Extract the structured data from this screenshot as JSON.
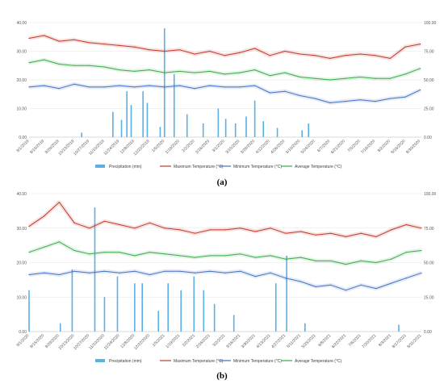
{
  "legend": [
    {
      "key": "precip",
      "name": "Precipitation (mm)",
      "color": "#5ab0e6",
      "kind": "bar"
    },
    {
      "key": "tmax",
      "name": "Maximum Temperature (°C)",
      "color": "#c0392b",
      "kind": "line"
    },
    {
      "key": "tmin",
      "name": "Minimum Temperature (°C)",
      "color": "#4472c4",
      "kind": "line"
    },
    {
      "key": "tavg",
      "name": "Average Temperature (°C)",
      "color": "#3aaa4a",
      "kind": "line"
    }
  ],
  "chart_data": [
    {
      "panel": "a",
      "label": "(a)",
      "type": "line",
      "ylim_left": [
        0,
        40
      ],
      "ylim_right": [
        0,
        100
      ],
      "yticks_left": [
        "0.00",
        "10.00",
        "20.00",
        "30.00",
        "40.00"
      ],
      "yticks_right": [
        "0.00",
        "25.00",
        "50.00",
        "75.00",
        "100.00"
      ],
      "date_start": "9/1/2019",
      "date_end": "8/31/2020",
      "x_ticks": [
        "9/1/2019",
        "9/15/2019",
        "9/29/2019",
        "10/13/2019",
        "10/27/2019",
        "11/10/2019",
        "11/24/2019",
        "12/8/2019",
        "12/22/2019",
        "1/5/2020",
        "1/19/2020",
        "2/2/2020",
        "2/16/2020",
        "3/1/2020",
        "3/15/2020",
        "3/29/2020",
        "4/12/2020",
        "4/26/2020",
        "5/10/2020",
        "5/24/2020",
        "6/7/2020",
        "6/21/2020",
        "7/5/2020",
        "7/19/2020",
        "8/2/2020",
        "8/16/2020",
        "8/30/2020"
      ],
      "series": [
        {
          "key": "tmax",
          "name": "Maximum Temperature (°C)",
          "axis": "left",
          "x": [
            "9/1/2019",
            "9/15/2019",
            "9/29/2019",
            "10/13/2019",
            "10/27/2019",
            "11/10/2019",
            "11/24/2019",
            "12/8/2019",
            "12/22/2019",
            "1/5/2020",
            "1/19/2020",
            "2/2/2020",
            "2/16/2020",
            "3/1/2020",
            "3/15/2020",
            "3/29/2020",
            "4/12/2020",
            "4/26/2020",
            "5/10/2020",
            "5/24/2020",
            "6/7/2020",
            "6/21/2020",
            "7/5/2020",
            "7/19/2020",
            "8/2/2020",
            "8/16/2020",
            "8/30/2020"
          ],
          "values": [
            34.5,
            35.5,
            33.5,
            34.0,
            33.0,
            32.5,
            32.0,
            31.5,
            30.5,
            30.0,
            30.5,
            29.0,
            30.0,
            28.5,
            29.5,
            31.0,
            28.5,
            30.0,
            29.0,
            28.5,
            27.5,
            28.5,
            29.0,
            28.5,
            27.5,
            31.5,
            32.5
          ]
        },
        {
          "key": "tavg",
          "name": "Average Temperature (°C)",
          "axis": "left",
          "x": [
            "9/1/2019",
            "9/15/2019",
            "9/29/2019",
            "10/13/2019",
            "10/27/2019",
            "11/10/2019",
            "11/24/2019",
            "12/8/2019",
            "12/22/2019",
            "1/5/2020",
            "1/19/2020",
            "2/2/2020",
            "2/16/2020",
            "3/1/2020",
            "3/15/2020",
            "3/29/2020",
            "4/12/2020",
            "4/26/2020",
            "5/10/2020",
            "5/24/2020",
            "6/7/2020",
            "6/21/2020",
            "7/5/2020",
            "7/19/2020",
            "8/2/2020",
            "8/16/2020",
            "8/30/2020"
          ],
          "values": [
            26.0,
            27.0,
            25.5,
            25.0,
            25.0,
            24.5,
            23.5,
            23.0,
            23.5,
            22.5,
            23.0,
            22.5,
            23.0,
            22.0,
            22.5,
            23.5,
            21.5,
            22.5,
            21.0,
            20.5,
            20.0,
            20.5,
            21.0,
            20.5,
            20.5,
            22.0,
            24.0
          ]
        },
        {
          "key": "tmin",
          "name": "Minimum Temperature (°C)",
          "axis": "left",
          "x": [
            "9/1/2019",
            "9/15/2019",
            "9/29/2019",
            "10/13/2019",
            "10/27/2019",
            "11/10/2019",
            "11/24/2019",
            "12/8/2019",
            "12/22/2019",
            "1/5/2020",
            "1/19/2020",
            "2/2/2020",
            "2/16/2020",
            "3/1/2020",
            "3/15/2020",
            "3/29/2020",
            "4/12/2020",
            "4/26/2020",
            "5/10/2020",
            "5/24/2020",
            "6/7/2020",
            "6/21/2020",
            "7/5/2020",
            "7/19/2020",
            "8/2/2020",
            "8/16/2020",
            "8/30/2020"
          ],
          "values": [
            17.5,
            18.0,
            17.0,
            18.5,
            17.5,
            17.5,
            18.0,
            17.5,
            18.0,
            17.5,
            18.0,
            17.0,
            18.0,
            17.5,
            17.5,
            18.0,
            15.5,
            16.0,
            14.5,
            13.5,
            12.0,
            12.5,
            13.0,
            12.5,
            13.5,
            14.0,
            16.5
          ]
        },
        {
          "key": "precip",
          "name": "Precipitation (mm)",
          "axis": "right",
          "x": [
            "10/20/2019",
            "11/18/2019",
            "11/26/2019",
            "12/1/2019",
            "12/5/2019",
            "12/16/2019",
            "12/20/2019",
            "1/1/2020",
            "1/5/2020",
            "1/14/2020",
            "1/26/2020",
            "2/10/2020",
            "2/24/2020",
            "3/2/2020",
            "3/11/2020",
            "3/21/2020",
            "3/29/2020",
            "4/6/2020",
            "4/19/2020",
            "5/12/2020",
            "5/18/2020"
          ],
          "values": [
            4,
            22,
            15,
            40,
            28,
            40,
            30,
            9,
            95,
            55,
            20,
            12,
            25,
            16,
            12,
            18,
            32,
            14,
            8,
            6,
            12
          ]
        }
      ]
    },
    {
      "panel": "b",
      "label": "(b)",
      "type": "line",
      "ylim_left": [
        0,
        40
      ],
      "ylim_right": [
        0,
        100
      ],
      "yticks_left": [
        "0.00",
        "10.00",
        "20.00",
        "30.00",
        "40.00"
      ],
      "yticks_right": [
        "0.00",
        "25.00",
        "50.00",
        "75.00",
        "100.00"
      ],
      "date_start": "9/1/2020",
      "date_end": "8/31/2021",
      "x_ticks": [
        "9/1/2020",
        "9/15/2020",
        "9/29/2020",
        "10/13/2020",
        "10/27/2020",
        "11/10/2020",
        "11/24/2020",
        "12/8/2020",
        "12/22/2020",
        "1/5/2021",
        "1/19/2021",
        "2/2/2021",
        "2/16/2021",
        "3/2/2021",
        "3/16/2021",
        "3/30/2021",
        "4/13/2021",
        "4/27/2021",
        "5/11/2021",
        "5/25/2021",
        "6/8/2021",
        "6/22/2021",
        "7/6/2021",
        "7/20/2021",
        "8/3/2021",
        "8/17/2021",
        "8/31/2021"
      ],
      "series": [
        {
          "key": "tmax",
          "name": "Maximum Temperature (°C)",
          "axis": "left",
          "x": [
            "9/1/2020",
            "9/15/2020",
            "9/29/2020",
            "10/13/2020",
            "10/27/2020",
            "11/10/2020",
            "11/24/2020",
            "12/8/2020",
            "12/22/2020",
            "1/5/2021",
            "1/19/2021",
            "2/2/2021",
            "2/16/2021",
            "3/2/2021",
            "3/16/2021",
            "3/30/2021",
            "4/13/2021",
            "4/27/2021",
            "5/11/2021",
            "5/25/2021",
            "6/8/2021",
            "6/22/2021",
            "7/6/2021",
            "7/20/2021",
            "8/3/2021",
            "8/17/2021",
            "8/31/2021"
          ],
          "values": [
            30.5,
            33.5,
            37.5,
            31.5,
            30.0,
            32.0,
            31.0,
            30.0,
            31.5,
            30.0,
            29.5,
            28.5,
            29.5,
            29.5,
            30.0,
            29.0,
            30.0,
            28.5,
            29.0,
            28.0,
            28.5,
            27.5,
            28.5,
            27.5,
            29.5,
            31.0,
            30.0
          ]
        },
        {
          "key": "tavg",
          "name": "Average Temperature (°C)",
          "axis": "left",
          "x": [
            "9/1/2020",
            "9/15/2020",
            "9/29/2020",
            "10/13/2020",
            "10/27/2020",
            "11/10/2020",
            "11/24/2020",
            "12/8/2020",
            "12/22/2020",
            "1/5/2021",
            "1/19/2021",
            "2/2/2021",
            "2/16/2021",
            "3/2/2021",
            "3/16/2021",
            "3/30/2021",
            "4/13/2021",
            "4/27/2021",
            "5/11/2021",
            "5/25/2021",
            "6/8/2021",
            "6/22/2021",
            "7/6/2021",
            "7/20/2021",
            "8/3/2021",
            "8/17/2021",
            "8/31/2021"
          ],
          "values": [
            23.0,
            24.5,
            26.0,
            23.5,
            22.5,
            23.0,
            23.0,
            22.0,
            23.0,
            22.5,
            22.0,
            21.5,
            22.0,
            22.0,
            22.5,
            21.5,
            22.0,
            21.0,
            21.5,
            20.5,
            20.5,
            19.5,
            20.5,
            20.0,
            21.0,
            23.0,
            23.5
          ]
        },
        {
          "key": "tmin",
          "name": "Minimum Temperature (°C)",
          "axis": "left",
          "x": [
            "9/1/2020",
            "9/15/2020",
            "9/29/2020",
            "10/13/2020",
            "10/27/2020",
            "11/10/2020",
            "11/24/2020",
            "12/8/2020",
            "12/22/2020",
            "1/5/2021",
            "1/19/2021",
            "2/2/2021",
            "2/16/2021",
            "3/2/2021",
            "3/16/2021",
            "3/30/2021",
            "4/13/2021",
            "4/27/2021",
            "5/11/2021",
            "5/25/2021",
            "6/8/2021",
            "6/22/2021",
            "7/6/2021",
            "7/20/2021",
            "8/3/2021",
            "8/17/2021",
            "8/31/2021"
          ],
          "values": [
            16.5,
            17.0,
            16.5,
            17.5,
            17.0,
            17.5,
            17.0,
            17.5,
            16.5,
            17.5,
            17.5,
            17.0,
            17.5,
            17.0,
            17.5,
            16.0,
            17.0,
            15.5,
            14.5,
            13.0,
            13.5,
            12.0,
            13.5,
            12.5,
            14.0,
            15.5,
            17.0
          ]
        },
        {
          "key": "precip",
          "name": "Precipitation (mm)",
          "axis": "right",
          "x": [
            "9/1/2020",
            "9/30/2020",
            "10/11/2020",
            "11/1/2020",
            "11/10/2020",
            "11/22/2020",
            "12/8/2020",
            "12/15/2020",
            "12/30/2020",
            "1/8/2021",
            "1/20/2021",
            "2/1/2021",
            "2/10/2021",
            "2/20/2021",
            "3/10/2021",
            "4/18/2021",
            "4/28/2021",
            "5/15/2021",
            "8/10/2021"
          ],
          "values": [
            30,
            6,
            45,
            90,
            25,
            40,
            35,
            35,
            15,
            35,
            30,
            40,
            30,
            20,
            12,
            35,
            55,
            6,
            5
          ]
        }
      ]
    }
  ],
  "panel_labels": {
    "a": "(a)",
    "b": "(b)"
  }
}
